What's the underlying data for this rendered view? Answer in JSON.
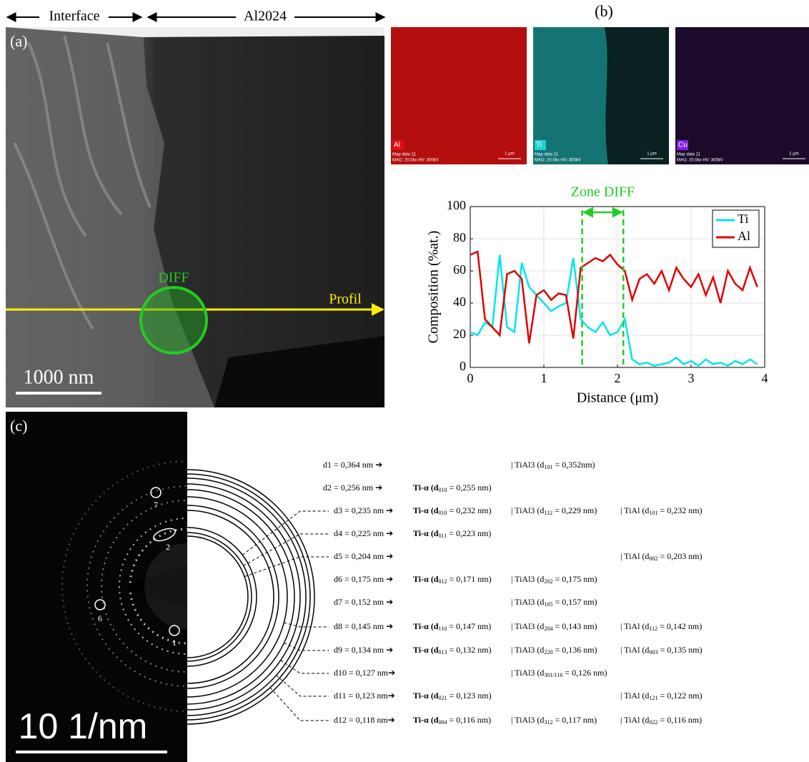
{
  "panel_a": {
    "label": "(a)",
    "header": {
      "interface": "Interface",
      "alloy": "Al2024"
    },
    "diff_label": "DIFF",
    "profile_label": "Profil",
    "scale_bar": "1000 nm"
  },
  "panel_b": {
    "label": "(b)",
    "maps": [
      {
        "element": "Al",
        "color": "#e01010",
        "caption": "Map data 11",
        "settings": "MAG: 20.0kx HV: 300kV",
        "scale": "1 μm"
      },
      {
        "element": "Ti",
        "color": "#20d0d0",
        "caption": "Map data 11",
        "settings": "MAG: 20.0kx HV: 300kV",
        "scale": "1 μm"
      },
      {
        "element": "Cu",
        "color": "#8020e0",
        "caption": "Map data 11",
        "settings": "MAG: 20.0kx HV: 300kV",
        "scale": "1 μm"
      }
    ]
  },
  "chart_data": {
    "type": "line",
    "xlabel": "Distance (μm)",
    "ylabel": "Composition (%at.)",
    "x": [
      0,
      0.1,
      0.2,
      0.3,
      0.4,
      0.5,
      0.6,
      0.7,
      0.8,
      0.9,
      1.0,
      1.1,
      1.2,
      1.3,
      1.4,
      1.5,
      1.6,
      1.7,
      1.8,
      1.9,
      2.0,
      2.1,
      2.2,
      2.3,
      2.4,
      2.5,
      2.6,
      2.7,
      2.8,
      2.9,
      3.0,
      3.1,
      3.2,
      3.3,
      3.4,
      3.5,
      3.6,
      3.7,
      3.8,
      3.9
    ],
    "series": [
      {
        "name": "Ti",
        "color": "#00e5ee",
        "values": [
          22,
          20,
          28,
          25,
          70,
          25,
          22,
          65,
          50,
          45,
          40,
          35,
          38,
          40,
          68,
          30,
          25,
          22,
          28,
          20,
          22,
          30,
          5,
          2,
          3,
          1,
          2,
          3,
          6,
          2,
          4,
          1,
          5,
          2,
          3,
          1,
          4,
          2,
          5,
          2
        ]
      },
      {
        "name": "Al",
        "color": "#e00000",
        "values": [
          70,
          72,
          30,
          25,
          20,
          58,
          60,
          55,
          15,
          45,
          48,
          42,
          46,
          45,
          18,
          62,
          65,
          68,
          66,
          70,
          64,
          60,
          42,
          55,
          58,
          52,
          60,
          48,
          62,
          55,
          50,
          58,
          45,
          56,
          40,
          60,
          52,
          48,
          62,
          50
        ]
      }
    ],
    "xlim": [
      0,
      4
    ],
    "ylim": [
      0,
      100
    ],
    "xticks": [
      0,
      1,
      2,
      3,
      4
    ],
    "yticks": [
      0,
      20,
      40,
      60,
      80,
      100
    ],
    "grid": true,
    "legend": "top-right",
    "zone": {
      "label": "Zone DIFF",
      "x": [
        1.52,
        2.08
      ],
      "color": "#22cc22"
    }
  },
  "panel_c": {
    "label": "(c)",
    "spots": [
      "1",
      "2",
      "6",
      "7"
    ],
    "scale_bar": "10 1/nm",
    "rings": [
      {
        "d": "d1 = 0,364 nm ➔",
        "ti": null,
        "tial3": [
          "| TiAl3 (d",
          "101",
          " = 0,352nm)"
        ],
        "tial": null
      },
      {
        "d": "d2 = 0,256 nm ➔",
        "ti": [
          "Ti-α (d",
          "010",
          " = 0,255 nm)"
        ],
        "tial3": null,
        "tial": null
      },
      {
        "d": "d3 = 0,235 nm ➔",
        "ti": [
          "Ti-α (d",
          "010",
          " = 0,232 nm)"
        ],
        "tial3": [
          "| TiAl3 (d",
          "112",
          " = 0,229 nm)"
        ],
        "tial": [
          "| TiAl (d",
          "101",
          " = 0,232 nm)"
        ]
      },
      {
        "d": "d4 = 0,225 nm ➔",
        "ti": [
          "Ti-α (d",
          "011",
          " = 0,223 nm)"
        ],
        "tial3": null,
        "tial": null
      },
      {
        "d": "d5 = 0,204 nm ➔",
        "ti": null,
        "tial3": null,
        "tial": [
          "| TiAl (d",
          "002",
          " = 0,203 nm)"
        ]
      },
      {
        "d": "d6 = 0,175 nm ➔",
        "ti": [
          "Ti-α (d",
          "012",
          " = 0,171 nm)"
        ],
        "tial3": [
          "| TiAl3 (d",
          "202",
          " = 0,175 nm)"
        ],
        "tial": null
      },
      {
        "d": "d7 = 0,152 nm ➔",
        "ti": null,
        "tial3": [
          "| TiAl3 (d",
          "105",
          " = 0,157 nm)"
        ],
        "tial": null
      },
      {
        "d": "d8 = 0,145 nm ➔",
        "ti": [
          "Ti-α (d",
          "110",
          " = 0,147 nm)"
        ],
        "tial3": [
          "| TiAl3 (d",
          "204",
          " = 0,143 nm)"
        ],
        "tial": [
          "| TiAl (d",
          "112",
          " = 0,142 nm)"
        ]
      },
      {
        "d": "d9 = 0,134 nm ➔",
        "ti": [
          "Ti-α (d",
          "013",
          " = 0,132 nm)"
        ],
        "tial3": [
          "| TiAl3 (d",
          "220",
          " = 0,136 nm)"
        ],
        "tial": [
          "| TiAl (d",
          "003",
          " = 0,135 nm)"
        ]
      },
      {
        "d": "d10 = 0,127 nm➔",
        "ti": null,
        "tial3": [
          "| TiAl3 (d",
          "301/116",
          " = 0,126 nm)"
        ],
        "tial": null
      },
      {
        "d": "d11 = 0,123 nm➔",
        "ti": [
          "Ti-α (d",
          "021",
          " = 0,123 nm)"
        ],
        "tial3": null,
        "tial": [
          "| TiAl (d",
          "121",
          " = 0,122 nm)"
        ]
      },
      {
        "d": "d12 = 0,118 nm➔",
        "ti": [
          "Ti-α (d",
          "004",
          " = 0,116 nm)"
        ],
        "tial3": [
          "| TiAl3 (d",
          "312",
          " = 0,117 nm)"
        ],
        "tial": [
          "| TiAl (d",
          "022",
          " = 0,116 nm)"
        ]
      }
    ]
  }
}
